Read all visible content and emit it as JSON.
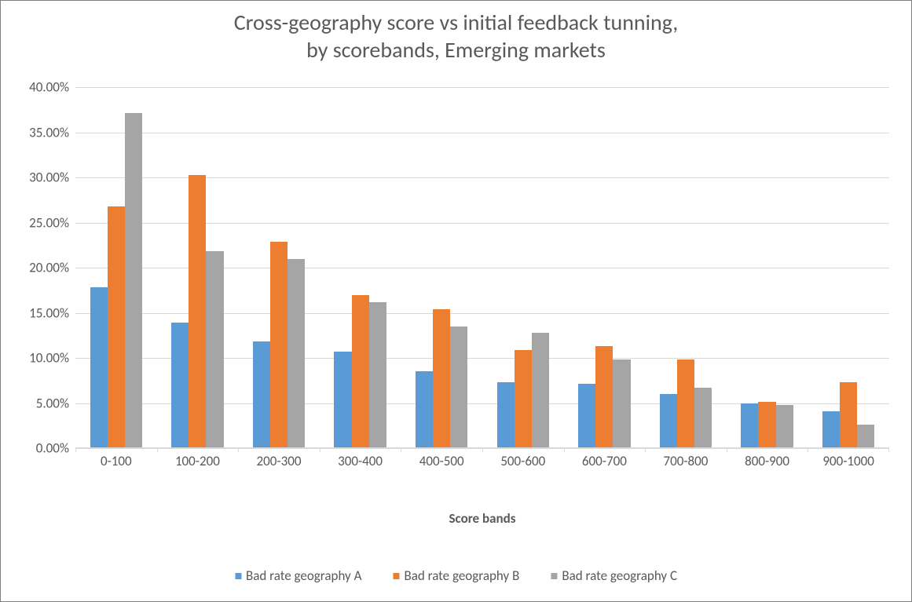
{
  "chart": {
    "type": "bar",
    "title_line1": "Cross-geography score vs initial feedback tunning,",
    "title_line2": "by scorebands, Emerging markets",
    "title_fontsize": 28,
    "title_color": "#595959",
    "background_color": "#ffffff",
    "border_color": "#808080",
    "grid_color": "#d9d9d9",
    "axis_label_color": "#595959",
    "tick_fontsize": 17,
    "x_axis_title": "Score bands",
    "x_axis_title_fontsize": 17,
    "y_axis_format": "percent_2dp",
    "ylim": [
      0,
      40
    ],
    "ytick_step": 5,
    "y_ticks": [
      "0.00%",
      "5.00%",
      "10.00%",
      "15.00%",
      "20.00%",
      "25.00%",
      "30.00%",
      "35.00%",
      "40.00%"
    ],
    "categories": [
      "0-100",
      "100-200",
      "200-300",
      "300-400",
      "400-500",
      "500-600",
      "600-700",
      "700-800",
      "800-900",
      "900-1000"
    ],
    "series": [
      {
        "name": "Bad rate geography A",
        "color": "#5b9bd5",
        "values": [
          17.8,
          13.9,
          11.8,
          10.7,
          8.5,
          7.3,
          7.1,
          6.0,
          5.0,
          4.1
        ]
      },
      {
        "name": "Bad rate geography B",
        "color": "#ed7d31",
        "values": [
          26.8,
          30.3,
          22.9,
          17.0,
          15.4,
          10.9,
          11.3,
          9.8,
          5.1,
          7.3
        ]
      },
      {
        "name": "Bad rate geography C",
        "color": "#a5a5a5",
        "values": [
          37.1,
          21.8,
          21.0,
          16.2,
          13.5,
          12.8,
          9.8,
          6.7,
          4.8,
          2.6
        ]
      }
    ],
    "bar_gap_ratio": 0.18,
    "bar_cluster_inner_gap": 0.04,
    "legend_fontsize": 17,
    "legend_position": "bottom"
  }
}
